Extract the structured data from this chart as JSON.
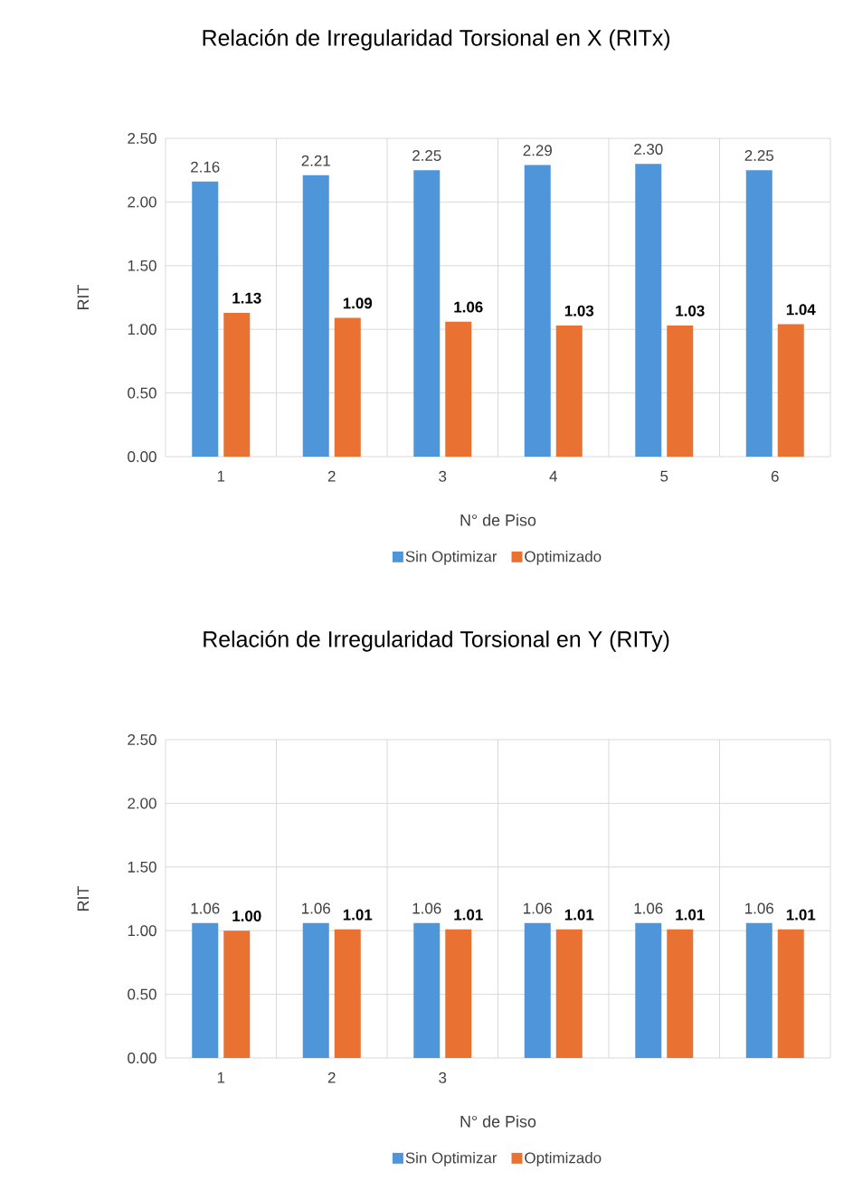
{
  "chart_data": [
    {
      "type": "bar",
      "title": "Relación de Irregularidad Torsional  en X (RITx)",
      "xlabel": "N° de Piso",
      "ylabel": "RIT",
      "categories": [
        "1",
        "2",
        "3",
        "4",
        "5",
        "6"
      ],
      "series": [
        {
          "name": "Sin Optimizar",
          "color": "#4e95d9",
          "values": [
            2.16,
            2.21,
            2.25,
            2.29,
            2.3,
            2.25
          ],
          "value_labels": [
            "2.16",
            "2.21",
            "2.25",
            "2.29",
            "2.30",
            "2.25"
          ]
        },
        {
          "name": "Optimizado",
          "color": "#e97132",
          "values": [
            1.13,
            1.09,
            1.06,
            1.03,
            1.03,
            1.04
          ],
          "value_labels": [
            "1.13",
            "1.09",
            "1.06",
            "1.03",
            "1.03",
            "1.04"
          ]
        }
      ],
      "ylim": [
        0,
        2.5
      ],
      "yticks": [
        {
          "value": 0,
          "label": "0.00"
        },
        {
          "value": 0.5,
          "label": "0.50"
        },
        {
          "value": 1,
          "label": "1.00"
        },
        {
          "value": 1.5,
          "label": "1.50"
        },
        {
          "value": 2,
          "label": "2.00"
        },
        {
          "value": 2.5,
          "label": "2.50"
        }
      ],
      "grid": true,
      "legend": "bottom"
    },
    {
      "type": "bar",
      "title": "Relación de Irregularidad Torsional  en Y (RITy)",
      "xlabel": "N° de Piso",
      "ylabel": "RIT",
      "categories": [
        "1",
        "2",
        "3",
        null,
        null,
        null
      ],
      "series": [
        {
          "name": "Sin Optimizar",
          "color": "#4e95d9",
          "values": [
            1.06,
            1.06,
            1.06,
            1.06,
            1.06,
            1.06
          ],
          "value_labels": [
            "1.06",
            "1.06",
            "1.06",
            "1.06",
            "1.06",
            "1.06"
          ]
        },
        {
          "name": "Optimizado",
          "color": "#e97132",
          "values": [
            1.0,
            1.01,
            1.01,
            1.01,
            1.01,
            1.01
          ],
          "value_labels": [
            "1.00",
            "1.01",
            "1.01",
            "1.01",
            "1.01",
            "1.01"
          ]
        }
      ],
      "ylim": [
        0,
        2.5
      ],
      "yticks": [
        {
          "value": 0,
          "label": "0.00"
        },
        {
          "value": 0.5,
          "label": "0.50"
        },
        {
          "value": 1,
          "label": "1.00"
        },
        {
          "value": 1.5,
          "label": "1.50"
        },
        {
          "value": 2,
          "label": "2.00"
        },
        {
          "value": 2.5,
          "label": "2.50"
        }
      ],
      "grid": true,
      "legend": "bottom"
    }
  ]
}
